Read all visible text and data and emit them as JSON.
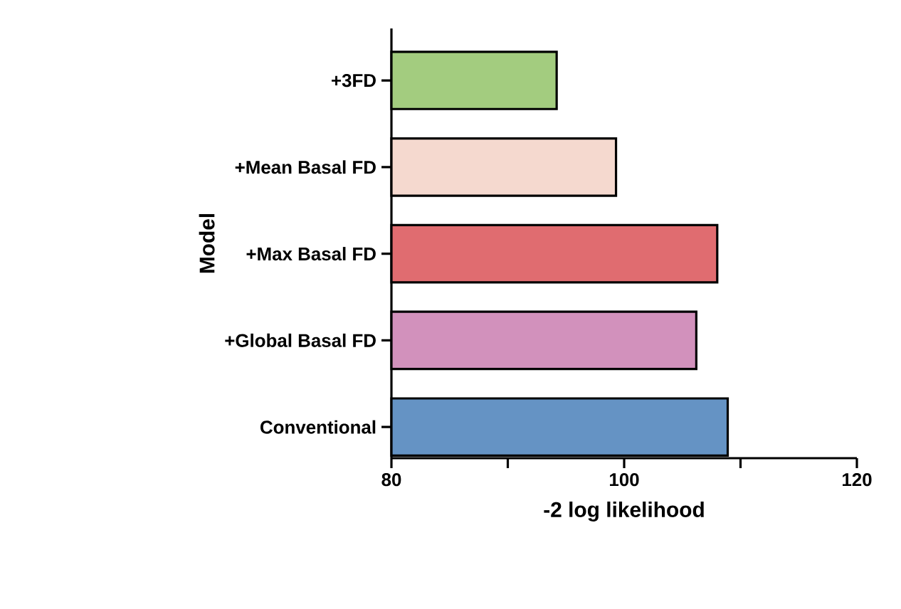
{
  "chart_data": {
    "type": "bar",
    "orientation": "horizontal",
    "xlabel": "-2 log likelihood",
    "ylabel": "Model",
    "categories": [
      "+3FD",
      "+Mean Basal FD",
      "+Max Basal FD",
      "+Global Basal FD",
      "Conventional"
    ],
    "values": [
      94.2,
      99.3,
      108.0,
      106.2,
      108.9
    ],
    "colors": [
      "#a3cc7f",
      "#f5d9cf",
      "#e06c70",
      "#d291bc",
      "#6593c4"
    ],
    "xlim": [
      80,
      120
    ],
    "xticks": [
      80,
      {
        "value": 90,
        "label": null
      },
      100,
      {
        "value": 110,
        "label": null
      },
      120
    ]
  }
}
